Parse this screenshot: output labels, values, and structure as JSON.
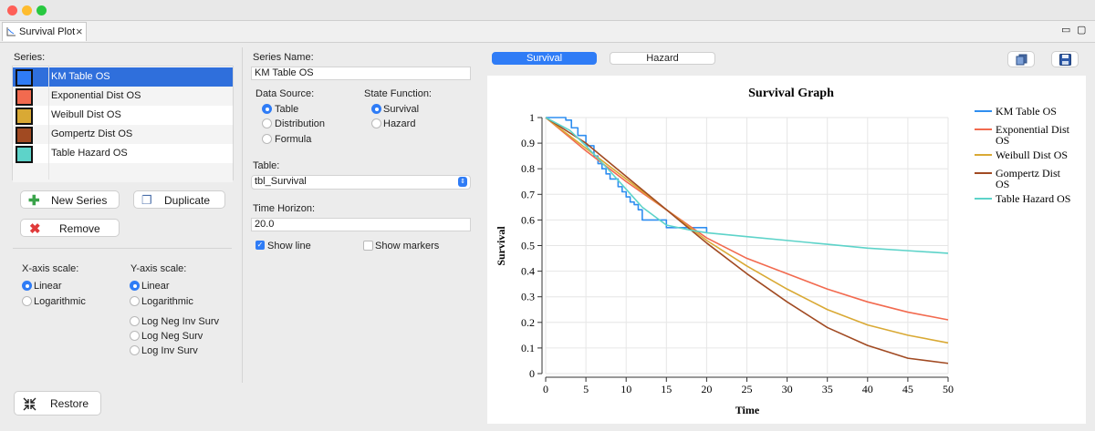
{
  "tab": {
    "label": "Survival Plot"
  },
  "series_panel": {
    "heading": "Series:",
    "items": [
      {
        "label": "KM Table OS",
        "color": "#2f7cf6",
        "selected": true
      },
      {
        "label": "Exponential Dist OS",
        "color": "#f26a4f",
        "selected": false
      },
      {
        "label": "Weibull Dist OS",
        "color": "#d9a934",
        "selected": false
      },
      {
        "label": "Gompertz Dist OS",
        "color": "#a14a22",
        "selected": false
      },
      {
        "label": "Table Hazard OS",
        "color": "#5dd3c9",
        "selected": false
      }
    ],
    "new_series_label": "New Series",
    "duplicate_label": "Duplicate",
    "remove_label": "Remove"
  },
  "scales": {
    "x_heading": "X-axis scale:",
    "x_options": [
      {
        "label": "Linear",
        "checked": true
      },
      {
        "label": "Logarithmic",
        "checked": false
      }
    ],
    "y_heading": "Y-axis scale:",
    "y_options": [
      {
        "label": "Linear",
        "checked": true
      },
      {
        "label": "Logarithmic",
        "checked": false
      },
      {
        "label": "Log Neg Inv Surv",
        "checked": false
      },
      {
        "label": "Log Neg Surv",
        "checked": false
      },
      {
        "label": "Log Inv Surv",
        "checked": false
      }
    ]
  },
  "restore_label": "Restore",
  "series_form": {
    "name_label": "Series Name:",
    "name_value": "KM Table OS",
    "data_source_label": "Data Source:",
    "data_source_options": [
      {
        "label": "Table",
        "checked": true
      },
      {
        "label": "Distribution",
        "checked": false
      },
      {
        "label": "Formula",
        "checked": false
      }
    ],
    "state_function_label": "State Function:",
    "state_function_options": [
      {
        "label": "Survival",
        "checked": true
      },
      {
        "label": "Hazard",
        "checked": false
      }
    ],
    "table_label": "Table:",
    "table_value": "tbl_Survival",
    "time_horizon_label": "Time Horizon:",
    "time_horizon_value": "20.0",
    "show_line_label": "Show line",
    "show_line_checked": true,
    "show_markers_label": "Show markers",
    "show_markers_checked": false
  },
  "view_tabs": {
    "survival": "Survival",
    "hazard": "Hazard",
    "active": "survival"
  },
  "icons": {
    "copy": "copy-icon",
    "save": "save-icon",
    "restore": "collapse-arrows-icon"
  },
  "chart_data": {
    "type": "line",
    "title": "Survival Graph",
    "xlabel": "Time",
    "ylabel": "Survival",
    "xlim": [
      0,
      50
    ],
    "ylim": [
      0,
      1
    ],
    "xticks": [
      0,
      5,
      10,
      15,
      20,
      25,
      30,
      35,
      40,
      45,
      50
    ],
    "yticks": [
      0,
      0.1,
      0.2,
      0.3,
      0.4,
      0.5,
      0.6,
      0.7,
      0.8,
      0.9,
      1
    ],
    "grid": true,
    "legend_position": "right",
    "series": [
      {
        "name": "KM Table OS",
        "color": "#2f8ef0",
        "step": true,
        "x": [
          0,
          1.5,
          2.5,
          3.2,
          4.0,
          5.0,
          6.0,
          6.5,
          7.0,
          7.5,
          8.0,
          9.0,
          9.5,
          10.0,
          10.5,
          11.0,
          11.5,
          12.0,
          13.0,
          14.0,
          15.0,
          16.0,
          17.0,
          18.0,
          19.0,
          20.0
        ],
        "y": [
          1.0,
          1.0,
          0.99,
          0.96,
          0.93,
          0.89,
          0.85,
          0.82,
          0.8,
          0.78,
          0.76,
          0.73,
          0.71,
          0.69,
          0.67,
          0.66,
          0.64,
          0.6,
          0.6,
          0.6,
          0.57,
          0.57,
          0.57,
          0.57,
          0.57,
          0.55
        ]
      },
      {
        "name": "Exponential Dist OS",
        "color": "#f26a4f",
        "x": [
          0,
          5,
          10,
          15,
          20,
          25,
          30,
          35,
          40,
          45,
          50
        ],
        "y": [
          1.0,
          0.87,
          0.75,
          0.64,
          0.53,
          0.45,
          0.39,
          0.33,
          0.28,
          0.24,
          0.21
        ]
      },
      {
        "name": "Weibull Dist OS",
        "color": "#d9a934",
        "x": [
          0,
          5,
          10,
          15,
          20,
          25,
          30,
          35,
          40,
          45,
          50
        ],
        "y": [
          1.0,
          0.88,
          0.76,
          0.64,
          0.52,
          0.42,
          0.33,
          0.25,
          0.19,
          0.15,
          0.12
        ]
      },
      {
        "name": "Gompertz Dist OS",
        "color": "#a14a22",
        "x": [
          0,
          5,
          10,
          15,
          20,
          25,
          30,
          35,
          40,
          45,
          50
        ],
        "y": [
          1.0,
          0.9,
          0.77,
          0.64,
          0.51,
          0.39,
          0.28,
          0.18,
          0.11,
          0.06,
          0.04
        ]
      },
      {
        "name": "Table Hazard OS",
        "color": "#5dd3c9",
        "x": [
          0,
          3,
          5,
          8,
          10,
          12,
          15,
          18,
          20,
          25,
          30,
          35,
          40,
          45,
          50
        ],
        "y": [
          1.0,
          0.95,
          0.89,
          0.79,
          0.72,
          0.65,
          0.58,
          0.56,
          0.55,
          0.535,
          0.52,
          0.505,
          0.49,
          0.48,
          0.47
        ]
      }
    ]
  }
}
